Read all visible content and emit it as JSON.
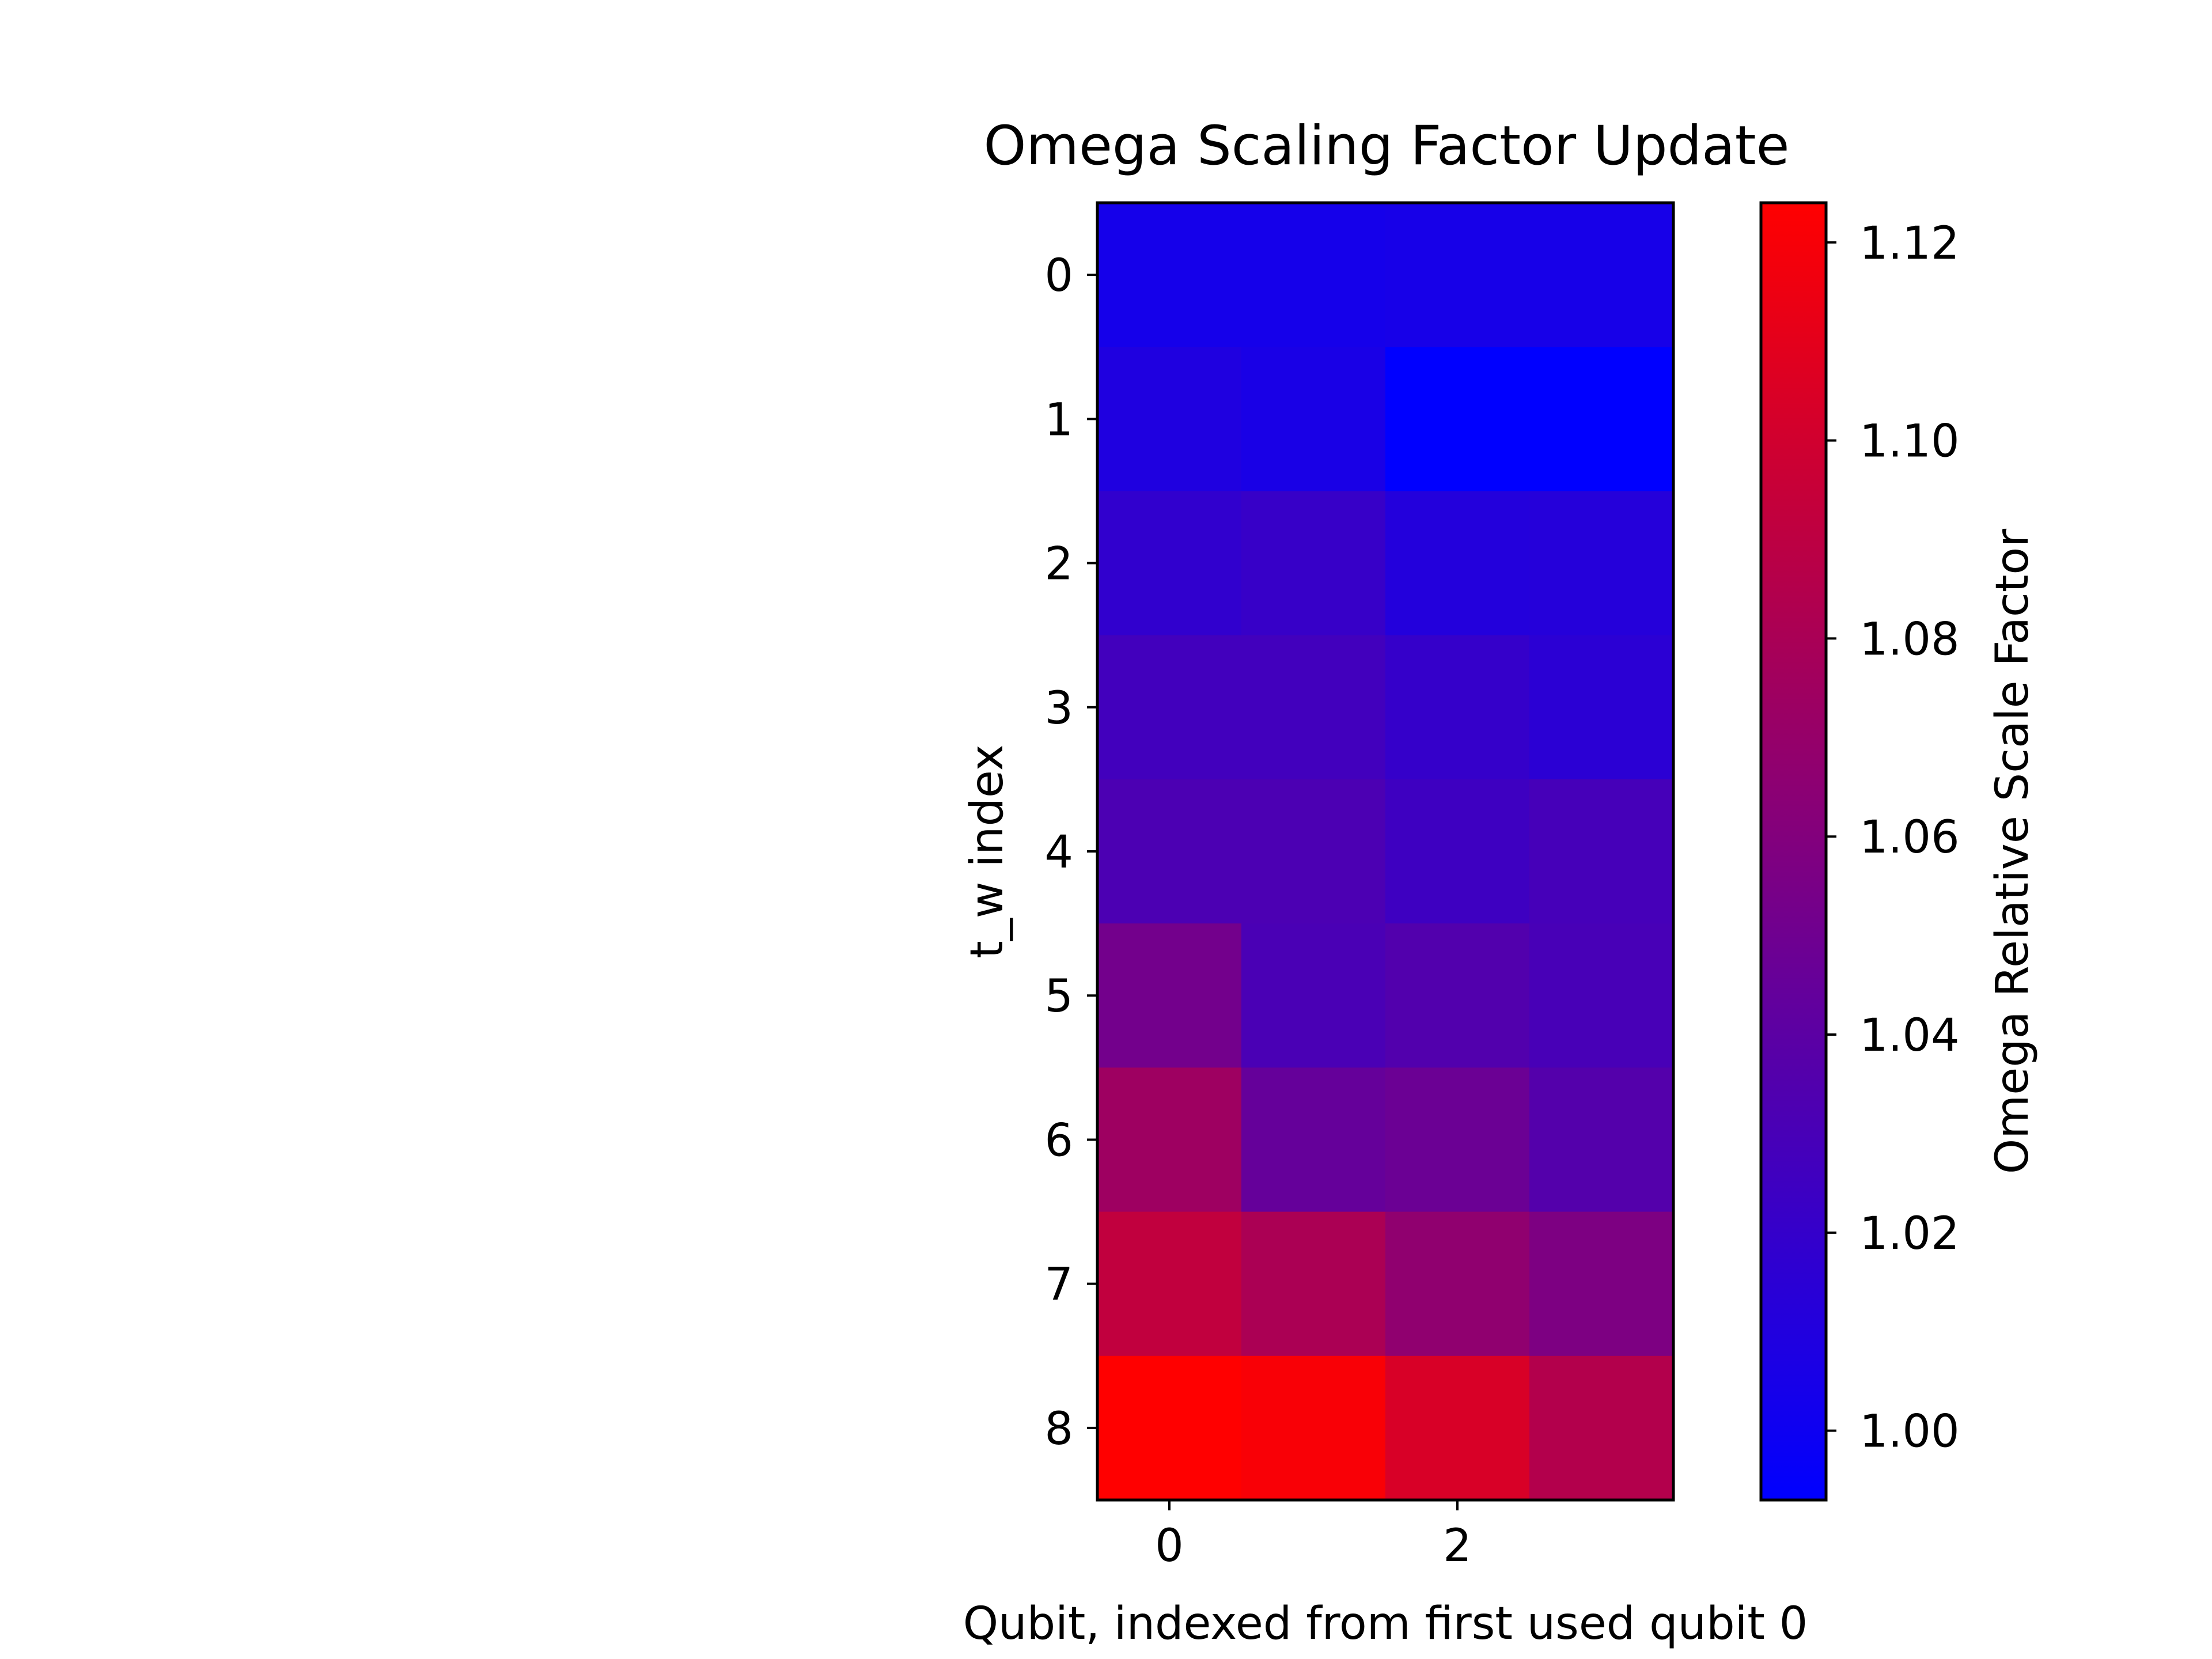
{
  "chart_data": {
    "type": "heatmap",
    "title": "Omega Scaling Factor Update",
    "xlabel": "Qubit, indexed from first used qubit 0",
    "ylabel": "t_w index",
    "x_ticks": [
      0,
      2
    ],
    "y_ticks": [
      0,
      1,
      2,
      3,
      4,
      5,
      6,
      7,
      8
    ],
    "columns": [
      0,
      1,
      2,
      3
    ],
    "rows": [
      0,
      1,
      2,
      3,
      4,
      5,
      6,
      7,
      8
    ],
    "values": [
      [
        1.004,
        1.004,
        1.005,
        1.005
      ],
      [
        1.009,
        1.006,
        0.993,
        0.993
      ],
      [
        1.018,
        1.021,
        1.011,
        1.012
      ],
      [
        1.027,
        1.027,
        1.02,
        1.015
      ],
      [
        1.032,
        1.032,
        1.025,
        1.029
      ],
      [
        1.052,
        1.031,
        1.035,
        1.03
      ],
      [
        1.074,
        1.045,
        1.048,
        1.036
      ],
      [
        1.092,
        1.081,
        1.067,
        1.057
      ],
      [
        1.124,
        1.121,
        1.104,
        1.085
      ]
    ],
    "colorbar": {
      "label": "Omega Relative Scale Factor",
      "min": 0.993,
      "max": 1.124,
      "ticks": [
        1.0,
        1.02,
        1.04,
        1.06,
        1.08,
        1.1,
        1.12
      ],
      "tick_labels": [
        "1.00",
        "1.02",
        "1.04",
        "1.06",
        "1.08",
        "1.10",
        "1.12"
      ],
      "color_low": "#0000ff",
      "color_high": "#ff0000"
    },
    "grid": false
  }
}
